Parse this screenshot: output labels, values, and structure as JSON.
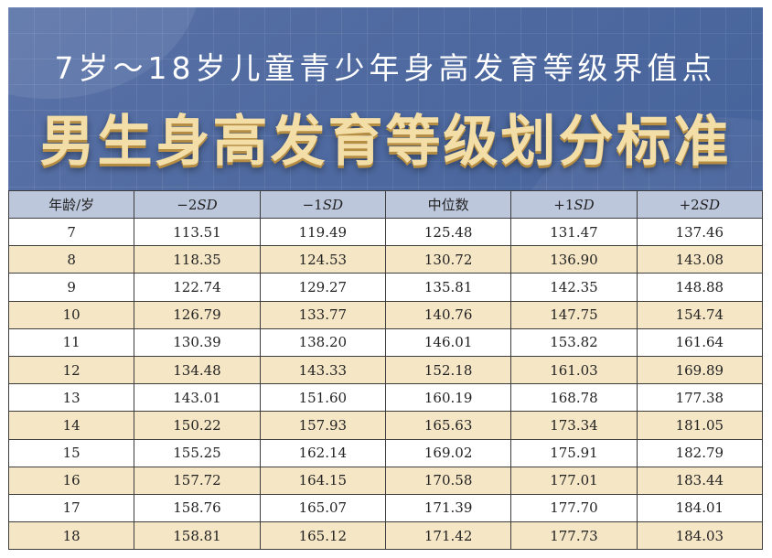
{
  "header": {
    "subtitle": "7岁～18岁儿童青少年身高发育等级界值点",
    "title": "男生身高发育等级划分标准"
  },
  "table": {
    "columns": [
      {
        "prefix": "年龄/岁",
        "sd": ""
      },
      {
        "prefix": "−2",
        "sd": "SD"
      },
      {
        "prefix": "−1",
        "sd": "SD"
      },
      {
        "prefix": "中位数",
        "sd": ""
      },
      {
        "prefix": "+1",
        "sd": "SD"
      },
      {
        "prefix": "+2",
        "sd": "SD"
      }
    ],
    "rows": [
      [
        "7",
        "113.51",
        "119.49",
        "125.48",
        "131.47",
        "137.46"
      ],
      [
        "8",
        "118.35",
        "124.53",
        "130.72",
        "136.90",
        "143.08"
      ],
      [
        "9",
        "122.74",
        "129.27",
        "135.81",
        "142.35",
        "148.88"
      ],
      [
        "10",
        "126.79",
        "133.77",
        "140.76",
        "147.75",
        "154.74"
      ],
      [
        "11",
        "130.39",
        "138.20",
        "146.01",
        "153.82",
        "161.64"
      ],
      [
        "12",
        "134.48",
        "143.33",
        "152.18",
        "161.03",
        "169.89"
      ],
      [
        "13",
        "143.01",
        "151.60",
        "160.19",
        "168.78",
        "177.38"
      ],
      [
        "14",
        "150.22",
        "157.93",
        "165.63",
        "173.34",
        "181.05"
      ],
      [
        "15",
        "155.25",
        "162.14",
        "169.02",
        "175.91",
        "182.79"
      ],
      [
        "16",
        "157.72",
        "164.15",
        "170.58",
        "177.01",
        "183.44"
      ],
      [
        "17",
        "158.76",
        "165.07",
        "171.39",
        "177.70",
        "184.01"
      ],
      [
        "18",
        "158.81",
        "165.12",
        "171.42",
        "177.73",
        "184.03"
      ]
    ]
  },
  "colors": {
    "banner": "#4f6aa0",
    "title": "#f3dea8",
    "header_row": "#bcc7dc",
    "stripe": "#f5e6c6"
  }
}
